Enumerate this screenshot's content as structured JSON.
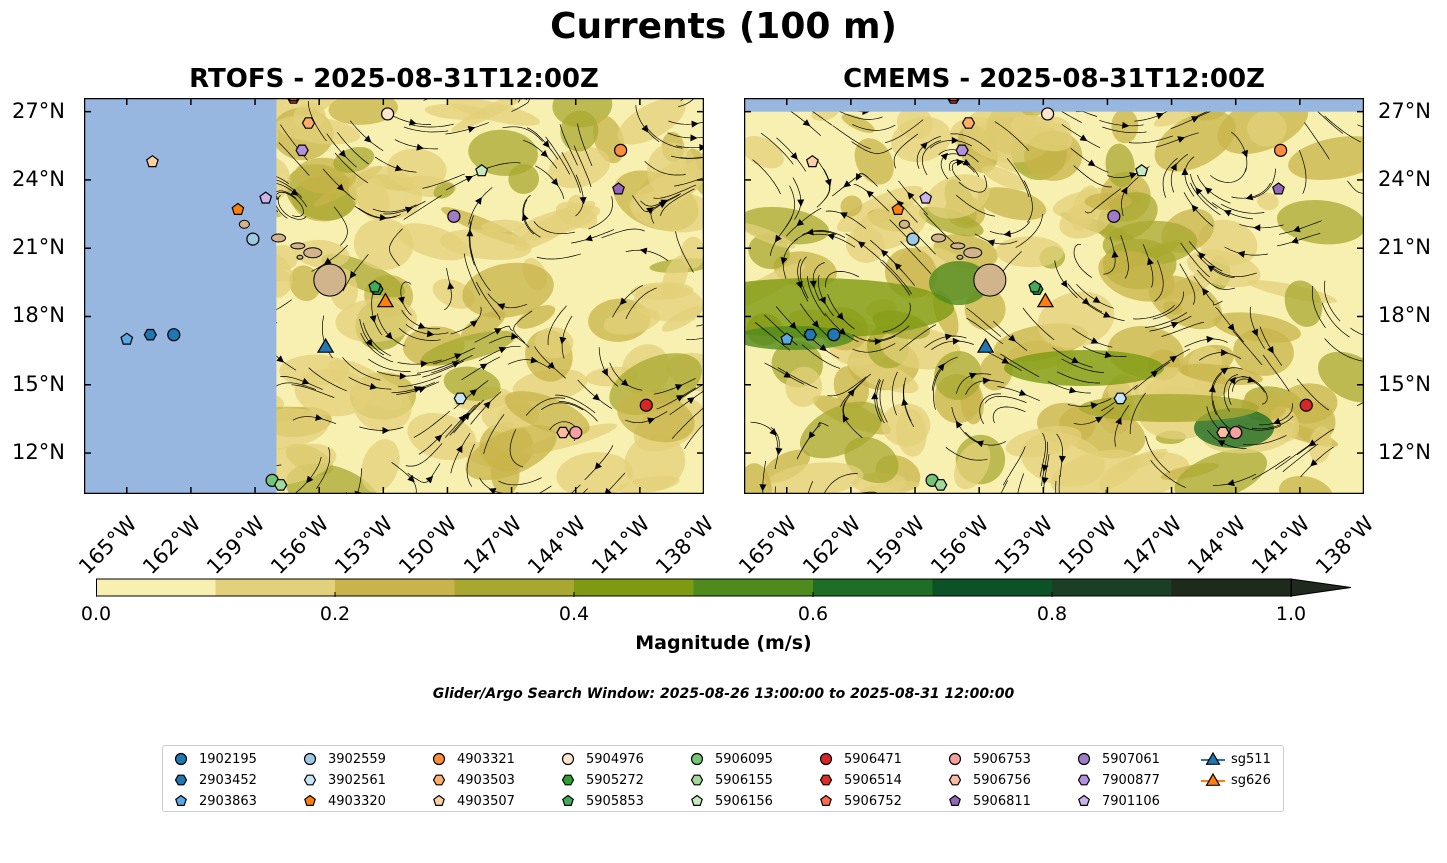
{
  "figure": {
    "suptitle": "Currents (100 m)",
    "search_window": "Glider/Argo Search Window: 2025-08-26 13:00:00 to 2025-08-31 12:00:00"
  },
  "chart_data": [
    {
      "type": "heatmap",
      "title": "RTOFS - 2025-08-31T12:00Z",
      "model": "RTOFS",
      "x_ticks": [
        "165°W",
        "162°W",
        "159°W",
        "156°W",
        "153°W",
        "150°W",
        "147°W",
        "144°W",
        "141°W",
        "138°W"
      ],
      "x_tick_values": [
        -165,
        -162,
        -159,
        -156,
        -153,
        -150,
        -147,
        -144,
        -141,
        -138
      ],
      "y_ticks": [
        "27°N",
        "24°N",
        "21°N",
        "18°N",
        "15°N",
        "12°N"
      ],
      "y_tick_values": [
        27,
        24,
        21,
        18,
        15,
        12
      ],
      "xlim": [
        -167,
        -138
      ],
      "ylim": [
        10.2,
        27.6
      ],
      "no_data_west_of": -158
    },
    {
      "type": "heatmap",
      "title": "CMEMS - 2025-08-31T12:00Z",
      "model": "CMEMS",
      "x_ticks": [
        "165°W",
        "162°W",
        "159°W",
        "156°W",
        "153°W",
        "150°W",
        "147°W",
        "144°W",
        "141°W",
        "138°W"
      ],
      "x_tick_values": [
        -165,
        -162,
        -159,
        -156,
        -153,
        -150,
        -147,
        -144,
        -141,
        -138
      ],
      "y_ticks": [
        "27°N",
        "24°N",
        "21°N",
        "18°N",
        "15°N",
        "12°N"
      ],
      "y_tick_values": [
        27,
        24,
        21,
        18,
        15,
        12
      ],
      "xlim": [
        -167,
        -138
      ],
      "ylim": [
        10.2,
        27.6
      ],
      "no_data_north_of": 27.0
    }
  ],
  "colorbar": {
    "label": "Magnitude (m/s)",
    "ticks": [
      "0.0",
      "0.2",
      "0.4",
      "0.6",
      "0.8",
      "1.0"
    ],
    "tick_values": [
      0.0,
      0.2,
      0.4,
      0.6,
      0.8,
      1.0
    ],
    "range": [
      0.0,
      1.0
    ],
    "extend": "max",
    "colors": [
      "#f7f0b0",
      "#e3d07a",
      "#c8b44a",
      "#a8a830",
      "#7d9a10",
      "#4f8a1c",
      "#1f6e26",
      "#0b5226",
      "#1b3f24",
      "#1e2b1c"
    ]
  },
  "land_color": "#d2b48c",
  "nodata_color": "#97b6e0",
  "platforms": [
    {
      "id": "1902195",
      "marker": "circle",
      "color": "#1f77b4",
      "lon": -162.8,
      "lat": 17.2
    },
    {
      "id": "2903452",
      "marker": "hexagon",
      "color": "#1f77b4",
      "lon": -163.9,
      "lat": 17.2
    },
    {
      "id": "2903863",
      "marker": "pentagon",
      "color": "#5aa8e3",
      "lon": -165.0,
      "lat": 17.0
    },
    {
      "id": "3902559",
      "marker": "circle",
      "color": "#9ecae1",
      "lon": -159.1,
      "lat": 21.4
    },
    {
      "id": "3902561",
      "marker": "hexagon",
      "color": "#c6e6f5",
      "lon": -149.4,
      "lat": 14.4
    },
    {
      "id": "4903320",
      "marker": "pentagon",
      "color": "#ff7f0e",
      "lon": -159.8,
      "lat": 22.7
    },
    {
      "id": "4903321",
      "marker": "circle",
      "color": "#fd8d3c",
      "lon": -141.9,
      "lat": 25.3
    },
    {
      "id": "4903503",
      "marker": "hexagon",
      "color": "#fdae6b",
      "lon": -156.5,
      "lat": 26.5
    },
    {
      "id": "4903507",
      "marker": "pentagon",
      "color": "#fdd0a2",
      "lon": -163.8,
      "lat": 24.8
    },
    {
      "id": "5904976",
      "marker": "circle",
      "color": "#fee6ce",
      "lon": -152.8,
      "lat": 26.9
    },
    {
      "id": "5905272",
      "marker": "hexagon",
      "color": "#2ca02c",
      "lon": -153.3,
      "lat": 19.2
    },
    {
      "id": "5905853",
      "marker": "pentagon",
      "color": "#41ab5d",
      "lon": -153.4,
      "lat": 19.3
    },
    {
      "id": "5906095",
      "marker": "circle",
      "color": "#74c476",
      "lon": -158.2,
      "lat": 10.8
    },
    {
      "id": "5906155",
      "marker": "hexagon",
      "color": "#a1d99b",
      "lon": -157.8,
      "lat": 10.6
    },
    {
      "id": "5906156",
      "marker": "pentagon",
      "color": "#c7e9c0",
      "lon": -148.4,
      "lat": 24.4
    },
    {
      "id": "5906471",
      "marker": "circle",
      "color": "#d62728",
      "lon": -140.7,
      "lat": 14.1
    },
    {
      "id": "5906514",
      "marker": "hexagon",
      "color": "#de2d26",
      "lon": -157.2,
      "lat": 27.6
    },
    {
      "id": "5906752",
      "marker": "pentagon",
      "color": "#fb6a4a",
      "lon": -157.2,
      "lat": 27.7
    },
    {
      "id": "5906753",
      "marker": "circle",
      "color": "#f4a0a0",
      "lon": -144.0,
      "lat": 12.9
    },
    {
      "id": "5906756",
      "marker": "hexagon",
      "color": "#fcbba1",
      "lon": -144.6,
      "lat": 12.9
    },
    {
      "id": "5906811",
      "marker": "pentagon",
      "color": "#9467bd",
      "lon": -142.0,
      "lat": 23.6
    },
    {
      "id": "5907061",
      "marker": "circle",
      "color": "#a07cc8",
      "lon": -149.7,
      "lat": 22.4
    },
    {
      "id": "7900877",
      "marker": "hexagon",
      "color": "#b48fdc",
      "lon": -156.8,
      "lat": 25.3
    },
    {
      "id": "7901106",
      "marker": "pentagon",
      "color": "#cbb3ec",
      "lon": -158.5,
      "lat": 23.2
    },
    {
      "id": "sg511",
      "marker": "triangle",
      "color": "#1f77b4",
      "lon": -155.7,
      "lat": 16.7
    },
    {
      "id": "sg626",
      "marker": "triangle",
      "color": "#ff7f0e",
      "lon": -152.9,
      "lat": 18.7
    }
  ]
}
